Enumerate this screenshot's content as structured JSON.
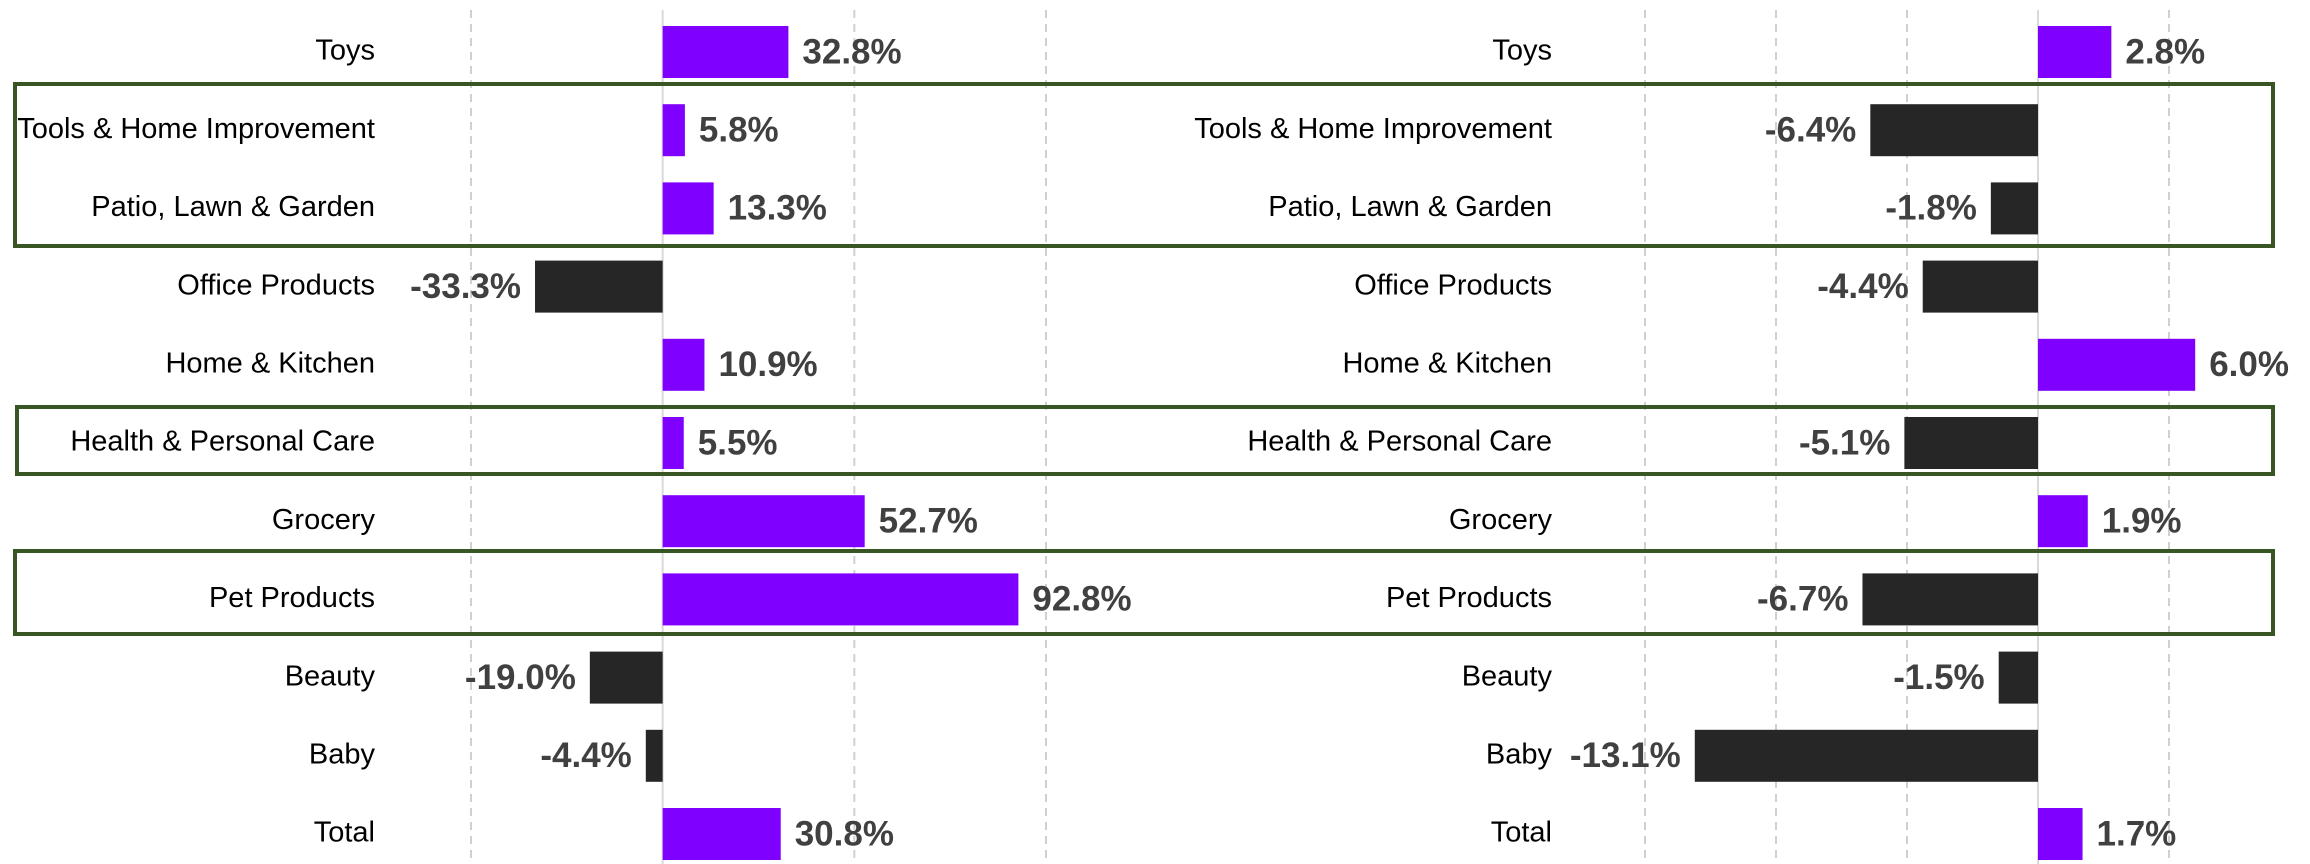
{
  "chart_data": [
    {
      "type": "bar",
      "orientation": "horizontal",
      "categories": [
        "Toys",
        "Tools & Home Improvement",
        "Patio, Lawn & Garden",
        "Office Products",
        "Home & Kitchen",
        "Health & Personal Care",
        "Grocery",
        "Pet Products",
        "Beauty",
        "Baby",
        "Total"
      ],
      "values": [
        32.8,
        5.8,
        13.3,
        -33.3,
        10.9,
        5.5,
        52.7,
        92.8,
        -19.0,
        -4.4,
        30.8
      ],
      "value_labels": [
        "32.8%",
        "5.8%",
        "13.3%",
        "-33.3%",
        "10.9%",
        "5.5%",
        "52.7%",
        "92.8%",
        "-19.0%",
        "-4.4%",
        "30.8%"
      ],
      "positive_color": "#7f00ff",
      "negative_color": "#262626",
      "xlim": [
        -50,
        100
      ],
      "xticks": [
        -50,
        0,
        50,
        100
      ],
      "grid": true
    },
    {
      "type": "bar",
      "orientation": "horizontal",
      "categories": [
        "Toys",
        "Tools & Home Improvement",
        "Patio, Lawn & Garden",
        "Office Products",
        "Home & Kitchen",
        "Health & Personal Care",
        "Grocery",
        "Pet Products",
        "Beauty",
        "Baby",
        "Total"
      ],
      "values": [
        2.8,
        -6.4,
        -1.8,
        -4.4,
        6.0,
        -5.1,
        1.9,
        -6.7,
        -1.5,
        -13.1,
        1.7
      ],
      "value_labels": [
        "2.8%",
        "-6.4%",
        "-1.8%",
        "-4.4%",
        "6.0%",
        "-5.1%",
        "1.9%",
        "-6.7%",
        "-1.5%",
        "-13.1%",
        "1.7%"
      ],
      "positive_color": "#7f00ff",
      "negative_color": "#262626",
      "xlim": [
        -15,
        5
      ],
      "xticks": [
        -15,
        -10,
        -5,
        0,
        5
      ],
      "grid": true
    }
  ]
}
